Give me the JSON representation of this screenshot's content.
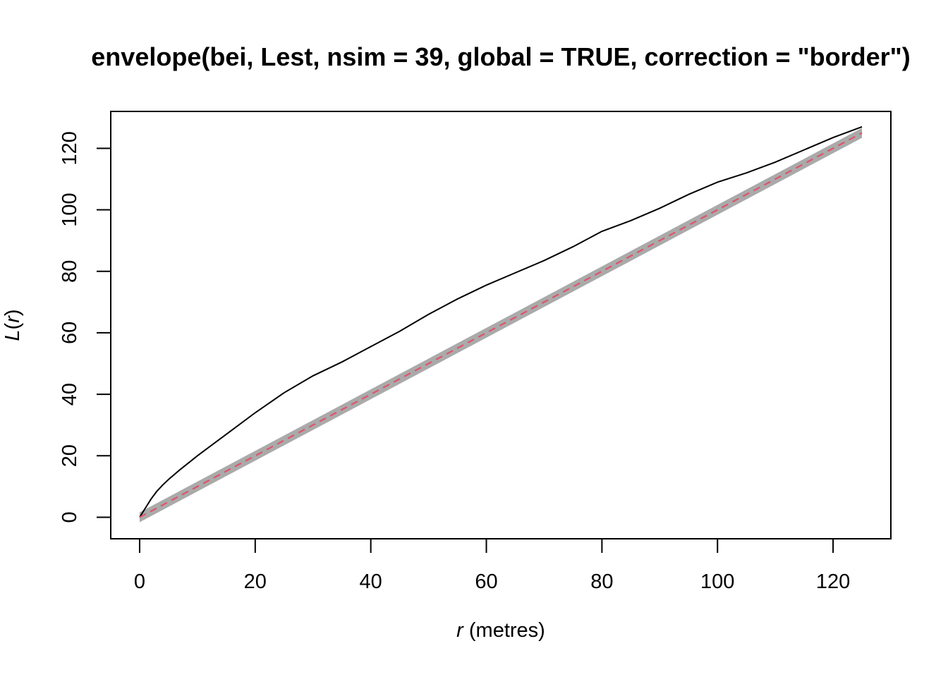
{
  "chart_data": {
    "type": "line",
    "title": "envelope(bei, Lest, nsim = 39, global = TRUE, correction = \"border\")",
    "xlabel": {
      "symbol": "r",
      "units": "(metres)"
    },
    "ylabel": {
      "func": "L",
      "open": "(",
      "symbol": "r",
      "close": ")"
    },
    "xlim": [
      -5,
      130
    ],
    "ylim": [
      -7,
      132
    ],
    "x_ticks": [
      0,
      20,
      40,
      60,
      80,
      100,
      120
    ],
    "y_ticks": [
      0,
      20,
      40,
      60,
      80,
      100,
      120
    ],
    "x_tick_labels": [
      "0",
      "20",
      "40",
      "60",
      "80",
      "100",
      "120"
    ],
    "y_tick_labels": [
      "0",
      "20",
      "40",
      "60",
      "80",
      "100",
      "120"
    ],
    "grid": false,
    "legend": "none",
    "envelope": {
      "color": "#aaaaaa",
      "x": [
        0,
        125
      ],
      "lower": [
        -1.6,
        123.4
      ],
      "upper": [
        1.6,
        126.6
      ]
    },
    "series": [
      {
        "style": "solid",
        "color": "#000000",
        "x": [
          0,
          1,
          2,
          3,
          4,
          5,
          7,
          10,
          15,
          20,
          25,
          30,
          35,
          40,
          45,
          50,
          55,
          60,
          65,
          70,
          75,
          80,
          85,
          90,
          95,
          100,
          105,
          110,
          115,
          120,
          125
        ],
        "y": [
          0,
          3,
          6,
          8.5,
          10.5,
          12.3,
          15.5,
          20,
          27,
          34,
          40.5,
          46,
          50.5,
          55.5,
          60.5,
          66,
          71,
          75.5,
          79.5,
          83.5,
          88,
          93,
          96.5,
          100.5,
          105,
          109,
          112,
          115.5,
          119.5,
          123.5,
          127
        ]
      },
      {
        "style": "dashed",
        "color": "#df536b",
        "x": [
          0,
          125
        ],
        "y": [
          0,
          125
        ]
      }
    ]
  }
}
